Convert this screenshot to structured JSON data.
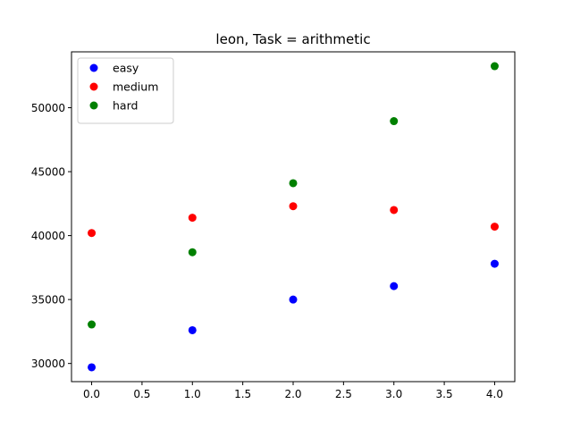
{
  "chart_data": {
    "type": "scatter",
    "title": "leon, Task = arithmetic",
    "xlabel": "",
    "ylabel": "",
    "x": [
      0,
      1,
      2,
      3,
      4
    ],
    "series": [
      {
        "name": "easy",
        "color": "#0000ff",
        "values": [
          29700,
          32600,
          35000,
          36050,
          37800
        ]
      },
      {
        "name": "medium",
        "color": "#ff0000",
        "values": [
          40200,
          41400,
          42300,
          42000,
          40700
        ]
      },
      {
        "name": "hard",
        "color": "#008000",
        "values": [
          33050,
          38700,
          44100,
          48950,
          53250
        ]
      }
    ],
    "xlim": [
      -0.2,
      4.2
    ],
    "ylim": [
      28580,
      54370
    ],
    "xticks": [
      0,
      0.5,
      1,
      1.5,
      2,
      2.5,
      3,
      3.5,
      4
    ],
    "xtick_labels": [
      "0.0",
      "0.5",
      "1.0",
      "1.5",
      "2.0",
      "2.5",
      "3.0",
      "3.5",
      "4.0"
    ],
    "yticks": [
      30000,
      35000,
      40000,
      45000,
      50000
    ],
    "ytick_labels": [
      "30000",
      "35000",
      "40000",
      "45000",
      "50000"
    ],
    "grid": false,
    "legend_position": "top-left"
  }
}
